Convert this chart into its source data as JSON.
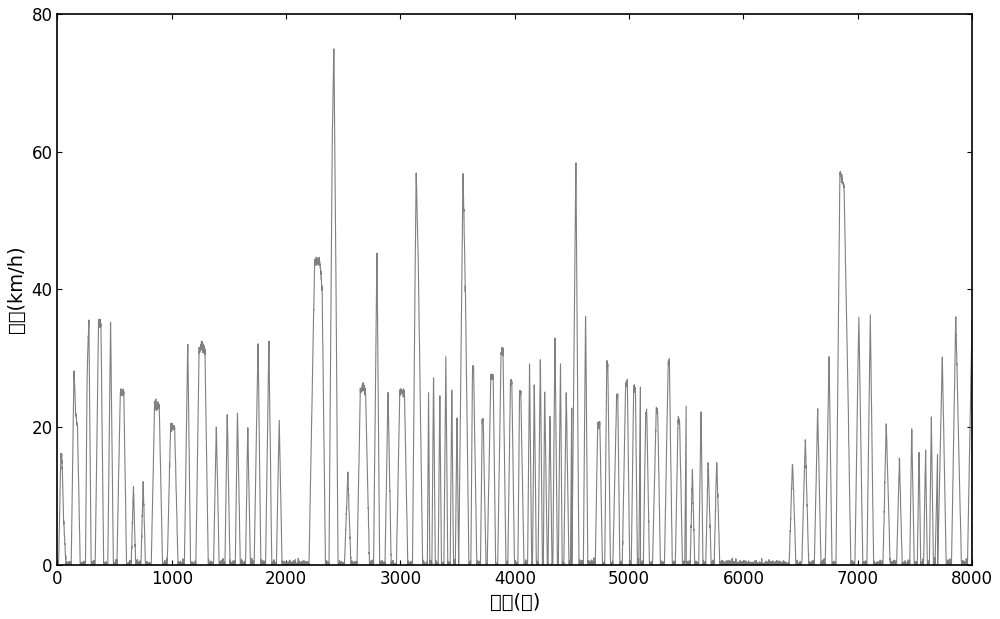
{
  "title": "",
  "xlabel": "时间(秒)",
  "ylabel": "速度(km/h)",
  "xlim": [
    0,
    8000
  ],
  "ylim": [
    0,
    80
  ],
  "xticks": [
    0,
    1000,
    2000,
    3000,
    4000,
    5000,
    6000,
    7000,
    8000
  ],
  "yticks": [
    0,
    20,
    40,
    60,
    80
  ],
  "line_color": "#808080",
  "line_width": 0.8,
  "bg_color": "#ffffff",
  "figsize": [
    10.0,
    6.19
  ],
  "dpi": 100
}
